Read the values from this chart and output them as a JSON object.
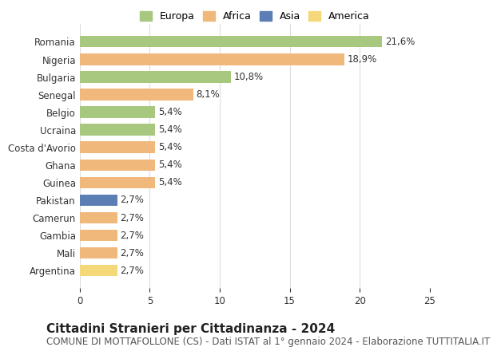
{
  "countries": [
    "Romania",
    "Nigeria",
    "Bulgaria",
    "Senegal",
    "Belgio",
    "Ucraina",
    "Costa d'Avorio",
    "Ghana",
    "Guinea",
    "Pakistan",
    "Camerun",
    "Gambia",
    "Mali",
    "Argentina"
  ],
  "values": [
    21.6,
    18.9,
    10.8,
    8.1,
    5.4,
    5.4,
    5.4,
    5.4,
    5.4,
    2.7,
    2.7,
    2.7,
    2.7,
    2.7
  ],
  "labels": [
    "21,6%",
    "18,9%",
    "10,8%",
    "8,1%",
    "5,4%",
    "5,4%",
    "5,4%",
    "5,4%",
    "5,4%",
    "2,7%",
    "2,7%",
    "2,7%",
    "2,7%",
    "2,7%"
  ],
  "continents": [
    "Europa",
    "Africa",
    "Europa",
    "Africa",
    "Europa",
    "Europa",
    "Africa",
    "Africa",
    "Africa",
    "Asia",
    "Africa",
    "Africa",
    "Africa",
    "America"
  ],
  "colors": {
    "Europa": "#a8c880",
    "Africa": "#f0b87a",
    "Asia": "#5b7fb5",
    "America": "#f5d87a"
  },
  "xlim": [
    0,
    25
  ],
  "xticks": [
    0,
    5,
    10,
    15,
    20,
    25
  ],
  "title": "Cittadini Stranieri per Cittadinanza - 2024",
  "subtitle": "COMUNE DI MOTTAFOLLONE (CS) - Dati ISTAT al 1° gennaio 2024 - Elaborazione TUTTITALIA.IT",
  "background_color": "#ffffff",
  "bar_height": 0.65,
  "label_fontsize": 8.5,
  "axis_label_fontsize": 8.5,
  "title_fontsize": 11,
  "subtitle_fontsize": 8.5,
  "legend_order": [
    "Europa",
    "Africa",
    "Asia",
    "America"
  ]
}
